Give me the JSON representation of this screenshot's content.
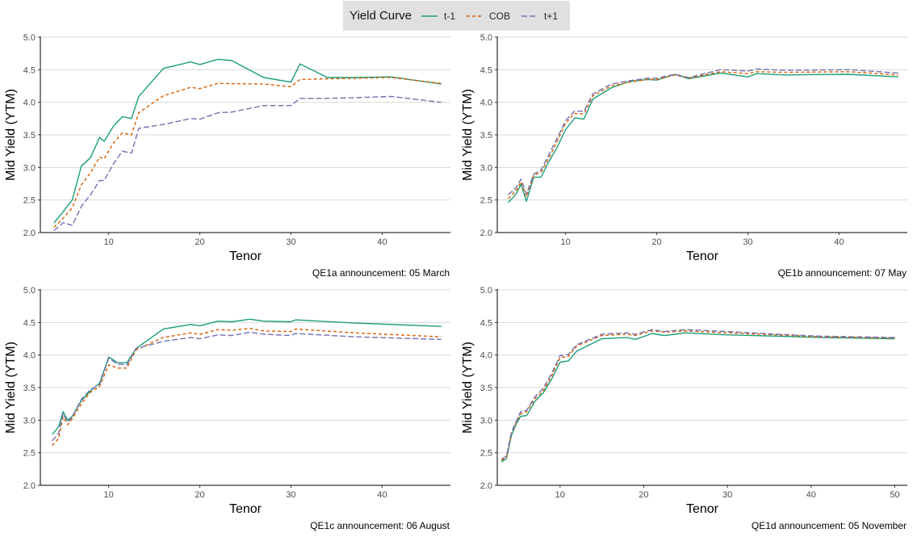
{
  "legend": {
    "title": "Yield Curve",
    "items": [
      {
        "label": "t-1",
        "color": "#1b9e77",
        "dash": "solid"
      },
      {
        "label": "COB",
        "color": "#d95f02",
        "dash": "dashed"
      },
      {
        "label": "t+1",
        "color": "#7570b3",
        "dash": "longdash"
      }
    ]
  },
  "chart_data": [
    {
      "type": "line",
      "xlabel": "Tenor",
      "ylabel": "Mid Yield (YTM)",
      "caption": "QE1a announcement: 05 March",
      "xlim": [
        2.5,
        47.5
      ],
      "xticks": [
        10,
        20,
        30,
        40
      ],
      "ylim": [
        2.0,
        5.0
      ],
      "yticks": [
        2.0,
        2.5,
        3.0,
        3.5,
        4.0,
        4.5,
        5.0
      ],
      "grid": "horizontal",
      "series": [
        {
          "name": "t-1",
          "x": [
            4,
            5,
            6,
            7,
            8,
            9,
            9.5,
            10.5,
            11.5,
            12.5,
            13.3,
            16,
            19,
            20,
            22,
            23.5,
            27,
            30,
            31,
            34,
            37,
            41,
            46.5
          ],
          "y": [
            2.15,
            2.32,
            2.5,
            3.02,
            3.15,
            3.46,
            3.4,
            3.63,
            3.78,
            3.75,
            4.09,
            4.52,
            4.62,
            4.58,
            4.66,
            4.64,
            4.38,
            4.31,
            4.59,
            4.38,
            4.38,
            4.39,
            4.28
          ]
        },
        {
          "name": "COB",
          "x": [
            4,
            5,
            6,
            7,
            8,
            9,
            9.5,
            10.5,
            11.5,
            12.5,
            13.3,
            16,
            19,
            20,
            22,
            27,
            30,
            31,
            34,
            41,
            46.5
          ],
          "y": [
            2.08,
            2.22,
            2.38,
            2.73,
            2.92,
            3.16,
            3.13,
            3.37,
            3.53,
            3.5,
            3.84,
            4.1,
            4.23,
            4.21,
            4.29,
            4.28,
            4.24,
            4.35,
            4.36,
            4.38,
            4.29
          ]
        },
        {
          "name": "t+1",
          "x": [
            4,
            5,
            6,
            7,
            8,
            9,
            9.5,
            10.5,
            11.5,
            12.5,
            13.3,
            16,
            19,
            20,
            22,
            23.5,
            27,
            30,
            31,
            34,
            37,
            41,
            46.5
          ],
          "y": [
            2.03,
            2.15,
            2.11,
            2.4,
            2.58,
            2.8,
            2.8,
            3.05,
            3.25,
            3.22,
            3.6,
            3.66,
            3.75,
            3.74,
            3.84,
            3.85,
            3.95,
            3.95,
            4.06,
            4.06,
            4.07,
            4.09,
            4.0
          ]
        }
      ]
    },
    {
      "type": "line",
      "xlabel": "Tenor",
      "ylabel": "Mid Yield (YTM)",
      "caption": "QE1b announcement: 07 May",
      "xlim": [
        2.5,
        47.5
      ],
      "xticks": [
        10,
        20,
        30,
        40
      ],
      "ylim": [
        2.0,
        5.0
      ],
      "yticks": [
        2.0,
        2.5,
        3.0,
        3.5,
        4.0,
        4.5,
        5.0
      ],
      "grid": "horizontal",
      "series": [
        {
          "name": "t-1",
          "x": [
            3.7,
            4.5,
            5.1,
            5.7,
            6.5,
            7.3,
            8,
            9,
            10,
            11,
            12,
            13,
            15,
            17,
            19,
            20,
            22,
            23.5,
            27,
            30,
            31,
            34,
            41,
            46.5
          ],
          "y": [
            2.46,
            2.58,
            2.74,
            2.48,
            2.85,
            2.85,
            3.05,
            3.29,
            3.58,
            3.76,
            3.74,
            4.05,
            4.22,
            4.32,
            4.35,
            4.34,
            4.43,
            4.36,
            4.45,
            4.39,
            4.44,
            4.42,
            4.43,
            4.39
          ]
        },
        {
          "name": "COB",
          "x": [
            3.7,
            4.5,
            5.1,
            5.7,
            6.5,
            7.3,
            8,
            9,
            10,
            11,
            12,
            13,
            15,
            17,
            19,
            20,
            22,
            23.5,
            27,
            30,
            31,
            34,
            41,
            46.5
          ],
          "y": [
            2.52,
            2.63,
            2.78,
            2.55,
            2.88,
            2.93,
            3.1,
            3.38,
            3.68,
            3.83,
            3.82,
            4.1,
            4.25,
            4.31,
            4.35,
            4.35,
            4.42,
            4.37,
            4.47,
            4.44,
            4.47,
            4.46,
            4.47,
            4.42
          ]
        },
        {
          "name": "t+1",
          "x": [
            3.7,
            4.5,
            5.1,
            5.7,
            6.5,
            7.3,
            8,
            9,
            10,
            11,
            12,
            13,
            15,
            17,
            19,
            20,
            22,
            23.5,
            27,
            30,
            31,
            34,
            41,
            46.5
          ],
          "y": [
            2.58,
            2.68,
            2.82,
            2.59,
            2.9,
            2.96,
            3.15,
            3.43,
            3.72,
            3.87,
            3.86,
            4.13,
            4.28,
            4.33,
            4.37,
            4.37,
            4.43,
            4.38,
            4.5,
            4.48,
            4.51,
            4.49,
            4.5,
            4.45
          ]
        }
      ]
    },
    {
      "type": "line",
      "xlabel": "Tenor",
      "ylabel": "Mid Yield (YTM)",
      "caption": "QE1c announcement: 06 August",
      "xlim": [
        2.5,
        47.5
      ],
      "xticks": [
        10,
        20,
        30,
        40
      ],
      "ylim": [
        2.0,
        5.0
      ],
      "yticks": [
        2.0,
        2.5,
        3.0,
        3.5,
        4.0,
        4.5,
        5.0
      ],
      "grid": "horizontal",
      "series": [
        {
          "name": "t-1",
          "x": [
            3.8,
            4.5,
            5,
            5.5,
            6,
            7,
            8,
            9,
            10,
            11,
            12,
            13,
            16,
            19,
            20,
            22,
            23.5,
            25.5,
            27,
            30,
            30.5,
            37,
            46.5
          ],
          "y": [
            2.78,
            2.9,
            3.13,
            3.0,
            3.06,
            3.3,
            3.45,
            3.57,
            3.97,
            3.88,
            3.88,
            4.1,
            4.4,
            4.47,
            4.45,
            4.52,
            4.51,
            4.55,
            4.52,
            4.51,
            4.54,
            4.49,
            4.44
          ]
        },
        {
          "name": "COB",
          "x": [
            3.8,
            4.5,
            5,
            5.5,
            6,
            7,
            8,
            9,
            10,
            11,
            12,
            13,
            16,
            19,
            20,
            22,
            23.5,
            25.5,
            27,
            30,
            30.5,
            37,
            46.5
          ],
          "y": [
            2.61,
            2.72,
            3.05,
            2.93,
            3.02,
            3.25,
            3.43,
            3.52,
            3.85,
            3.8,
            3.8,
            4.08,
            4.27,
            4.34,
            4.32,
            4.39,
            4.38,
            4.41,
            4.37,
            4.36,
            4.4,
            4.34,
            4.28
          ]
        },
        {
          "name": "t+1",
          "x": [
            3.8,
            4.5,
            5,
            5.5,
            6,
            7,
            8,
            9,
            10,
            11,
            12,
            13,
            16,
            19,
            20,
            22,
            23.5,
            25.5,
            27,
            30,
            30.5,
            37,
            46.5
          ],
          "y": [
            2.68,
            2.8,
            3.1,
            2.97,
            3.05,
            3.32,
            3.47,
            3.55,
            3.95,
            3.86,
            3.85,
            4.1,
            4.21,
            4.27,
            4.25,
            4.31,
            4.3,
            4.35,
            4.32,
            4.3,
            4.33,
            4.28,
            4.24
          ]
        }
      ]
    },
    {
      "type": "line",
      "xlabel": "Tenor",
      "ylabel": "Mid Yield (YTM)",
      "caption": "QE1d announcement: 05 November",
      "xlim": [
        2.5,
        51.5
      ],
      "xticks": [
        10,
        20,
        30,
        40,
        50
      ],
      "ylim": [
        2.0,
        5.0
      ],
      "yticks": [
        2.0,
        2.5,
        3.0,
        3.5,
        4.0,
        4.5,
        5.0
      ],
      "grid": "horizontal",
      "series": [
        {
          "name": "t-1",
          "x": [
            3,
            3.6,
            4.2,
            4.8,
            5.3,
            6,
            7,
            8,
            9,
            10,
            11,
            12,
            15,
            18,
            19,
            21,
            22.5,
            25,
            30,
            36,
            41,
            50
          ],
          "y": [
            2.36,
            2.41,
            2.77,
            2.95,
            3.06,
            3.07,
            3.29,
            3.42,
            3.63,
            3.89,
            3.91,
            4.06,
            4.25,
            4.27,
            4.24,
            4.33,
            4.3,
            4.34,
            4.31,
            4.29,
            4.27,
            4.25
          ]
        },
        {
          "name": "COB",
          "x": [
            3,
            3.6,
            4.2,
            4.8,
            5.3,
            6,
            7,
            8,
            9,
            10,
            11,
            12,
            15,
            18,
            19,
            21,
            22.5,
            25,
            30,
            36,
            41,
            50
          ],
          "y": [
            2.38,
            2.43,
            2.8,
            2.97,
            3.1,
            3.13,
            3.33,
            3.45,
            3.68,
            3.96,
            3.98,
            4.14,
            4.3,
            4.32,
            4.3,
            4.37,
            4.35,
            4.37,
            4.34,
            4.31,
            4.28,
            4.26
          ]
        },
        {
          "name": "t+1",
          "x": [
            3,
            3.6,
            4.2,
            4.8,
            5.3,
            6,
            7,
            8,
            9,
            10,
            11,
            12,
            15,
            18,
            19,
            21,
            22.5,
            25,
            30,
            36,
            41,
            50
          ],
          "y": [
            2.4,
            2.45,
            2.82,
            2.99,
            3.13,
            3.15,
            3.36,
            3.49,
            3.72,
            3.99,
            4.01,
            4.16,
            4.32,
            4.34,
            4.32,
            4.39,
            4.36,
            4.39,
            4.36,
            4.32,
            4.29,
            4.27
          ]
        }
      ]
    }
  ]
}
